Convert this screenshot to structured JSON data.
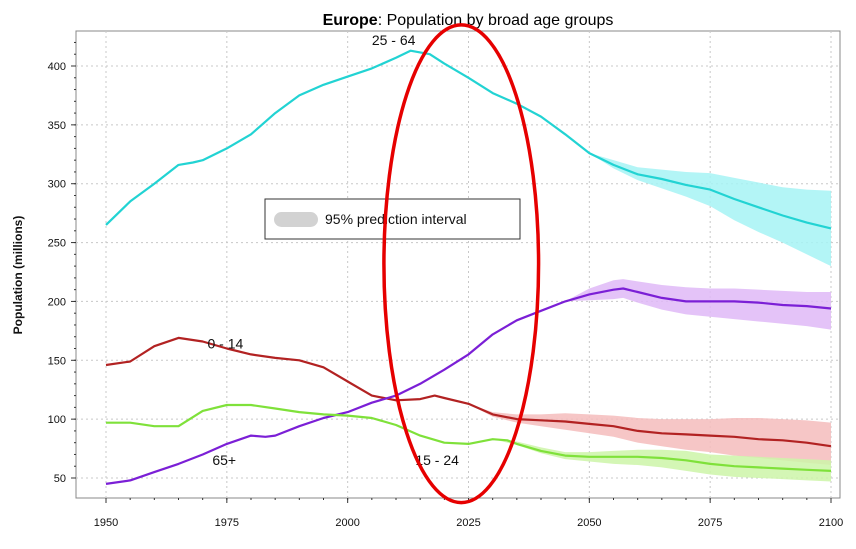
{
  "chart_data": {
    "type": "line",
    "title_bold": "Europe",
    "title_rest": ": Population by broad age groups",
    "xlabel": "",
    "ylabel": "Population (millions)",
    "xlim": [
      1950,
      2100
    ],
    "ylim": [
      40,
      425
    ],
    "x_ticks": [
      1950,
      1975,
      2000,
      2025,
      2050,
      2075,
      2100
    ],
    "y_ticks": [
      50,
      100,
      150,
      200,
      250,
      300,
      350,
      400
    ],
    "grid": true,
    "legend": {
      "label": "95% prediction interval",
      "placement": "center-left"
    },
    "series": [
      {
        "name": "25 - 64",
        "color": "#22d3d3",
        "band_color": "#a6f3f5",
        "label_pos": [
          2005,
          418
        ],
        "data": [
          [
            1950,
            265
          ],
          [
            1955,
            285
          ],
          [
            1960,
            300
          ],
          [
            1965,
            316
          ],
          [
            1968,
            318
          ],
          [
            1970,
            320
          ],
          [
            1975,
            330
          ],
          [
            1980,
            342
          ],
          [
            1985,
            360
          ],
          [
            1990,
            375
          ],
          [
            1995,
            384
          ],
          [
            2000,
            391
          ],
          [
            2005,
            398
          ],
          [
            2010,
            407
          ],
          [
            2013,
            413
          ],
          [
            2017,
            410
          ],
          [
            2020,
            402
          ],
          [
            2025,
            390
          ],
          [
            2030,
            377
          ],
          [
            2035,
            368
          ],
          [
            2040,
            357
          ],
          [
            2045,
            342
          ],
          [
            2050,
            326
          ],
          [
            2055,
            316
          ],
          [
            2060,
            308
          ],
          [
            2065,
            304
          ],
          [
            2070,
            299
          ],
          [
            2075,
            295
          ],
          [
            2080,
            287
          ],
          [
            2085,
            280
          ],
          [
            2090,
            273
          ],
          [
            2095,
            267
          ],
          [
            2100,
            262
          ]
        ],
        "band": [
          [
            2050,
            326,
            326
          ],
          [
            2055,
            313,
            320
          ],
          [
            2060,
            303,
            314
          ],
          [
            2065,
            296,
            312
          ],
          [
            2070,
            289,
            310
          ],
          [
            2075,
            281,
            309
          ],
          [
            2080,
            269,
            305
          ],
          [
            2085,
            259,
            301
          ],
          [
            2090,
            250,
            297
          ],
          [
            2095,
            240,
            295
          ],
          [
            2100,
            230,
            294
          ]
        ]
      },
      {
        "name": "0 - 14",
        "color": "#b22222",
        "band_color": "#f4bcbc",
        "label_pos": [
          1971,
          160
        ],
        "data": [
          [
            1950,
            146
          ],
          [
            1955,
            149
          ],
          [
            1960,
            162
          ],
          [
            1965,
            169
          ],
          [
            1970,
            166
          ],
          [
            1975,
            160
          ],
          [
            1980,
            155
          ],
          [
            1985,
            152
          ],
          [
            1990,
            150
          ],
          [
            1995,
            144
          ],
          [
            2000,
            132
          ],
          [
            2005,
            120
          ],
          [
            2010,
            116
          ],
          [
            2015,
            117
          ],
          [
            2018,
            120
          ],
          [
            2020,
            118
          ],
          [
            2025,
            113
          ],
          [
            2030,
            104
          ],
          [
            2035,
            100
          ],
          [
            2040,
            99
          ],
          [
            2045,
            98
          ],
          [
            2050,
            96
          ],
          [
            2055,
            94
          ],
          [
            2060,
            90
          ],
          [
            2065,
            88
          ],
          [
            2070,
            87
          ],
          [
            2075,
            86
          ],
          [
            2080,
            85
          ],
          [
            2085,
            83
          ],
          [
            2090,
            82
          ],
          [
            2095,
            80
          ],
          [
            2100,
            77
          ]
        ],
        "band": [
          [
            2025,
            113,
            113
          ],
          [
            2030,
            102,
            106
          ],
          [
            2035,
            97,
            104
          ],
          [
            2040,
            94,
            104
          ],
          [
            2045,
            91,
            105
          ],
          [
            2050,
            88,
            104
          ],
          [
            2055,
            85,
            103
          ],
          [
            2060,
            80,
            101
          ],
          [
            2065,
            77,
            100
          ],
          [
            2070,
            74,
            100
          ],
          [
            2075,
            72,
            100
          ],
          [
            2080,
            69,
            101
          ],
          [
            2085,
            67,
            101
          ],
          [
            2090,
            65,
            100
          ],
          [
            2095,
            63,
            99
          ],
          [
            2100,
            61,
            97
          ]
        ]
      },
      {
        "name": "65+",
        "color": "#7b1fd6",
        "band_color": "#dfb8f7",
        "label_pos": [
          1972,
          61
        ],
        "data": [
          [
            1950,
            45
          ],
          [
            1955,
            48
          ],
          [
            1960,
            55
          ],
          [
            1965,
            62
          ],
          [
            1970,
            70
          ],
          [
            1975,
            79
          ],
          [
            1980,
            86
          ],
          [
            1983,
            85
          ],
          [
            1985,
            86
          ],
          [
            1990,
            94
          ],
          [
            1995,
            101
          ],
          [
            2000,
            106
          ],
          [
            2005,
            114
          ],
          [
            2010,
            120
          ],
          [
            2015,
            130
          ],
          [
            2020,
            142
          ],
          [
            2025,
            155
          ],
          [
            2030,
            172
          ],
          [
            2035,
            184
          ],
          [
            2040,
            192
          ],
          [
            2045,
            200
          ],
          [
            2050,
            206
          ],
          [
            2055,
            210
          ],
          [
            2057,
            211
          ],
          [
            2060,
            208
          ],
          [
            2065,
            203
          ],
          [
            2070,
            200
          ],
          [
            2075,
            200
          ],
          [
            2080,
            200
          ],
          [
            2085,
            199
          ],
          [
            2090,
            197
          ],
          [
            2095,
            196
          ],
          [
            2100,
            194
          ]
        ],
        "band": [
          [
            2045,
            200,
            200
          ],
          [
            2050,
            201,
            211
          ],
          [
            2055,
            202,
            218
          ],
          [
            2057,
            203,
            219
          ],
          [
            2060,
            199,
            217
          ],
          [
            2065,
            193,
            214
          ],
          [
            2070,
            189,
            212
          ],
          [
            2075,
            187,
            211
          ],
          [
            2080,
            185,
            211
          ],
          [
            2085,
            183,
            210
          ],
          [
            2090,
            181,
            209
          ],
          [
            2095,
            179,
            208
          ],
          [
            2100,
            176,
            208
          ]
        ]
      },
      {
        "name": "15 - 24",
        "color": "#7fe13a",
        "band_color": "#ccf5a8",
        "label_pos": [
          2014,
          61
        ],
        "data": [
          [
            1950,
            97
          ],
          [
            1955,
            97
          ],
          [
            1960,
            94
          ],
          [
            1965,
            94
          ],
          [
            1970,
            107
          ],
          [
            1975,
            112
          ],
          [
            1980,
            112
          ],
          [
            1985,
            109
          ],
          [
            1990,
            106
          ],
          [
            1995,
            104
          ],
          [
            2000,
            103
          ],
          [
            2005,
            101
          ],
          [
            2010,
            95
          ],
          [
            2015,
            86
          ],
          [
            2020,
            80
          ],
          [
            2025,
            79
          ],
          [
            2030,
            83
          ],
          [
            2033,
            82
          ],
          [
            2035,
            79
          ],
          [
            2040,
            73
          ],
          [
            2045,
            69
          ],
          [
            2050,
            68
          ],
          [
            2055,
            68
          ],
          [
            2060,
            68
          ],
          [
            2065,
            67
          ],
          [
            2070,
            65
          ],
          [
            2075,
            62
          ],
          [
            2080,
            60
          ],
          [
            2085,
            59
          ],
          [
            2090,
            58
          ],
          [
            2095,
            57
          ],
          [
            2100,
            56
          ]
        ],
        "band": [
          [
            2030,
            83,
            83
          ],
          [
            2035,
            78,
            81
          ],
          [
            2040,
            71,
            76
          ],
          [
            2045,
            66,
            72
          ],
          [
            2050,
            64,
            72
          ],
          [
            2055,
            62,
            73
          ],
          [
            2060,
            61,
            74
          ],
          [
            2065,
            59,
            74
          ],
          [
            2070,
            56,
            73
          ],
          [
            2075,
            53,
            70
          ],
          [
            2080,
            51,
            69
          ],
          [
            2085,
            50,
            68
          ],
          [
            2090,
            49,
            67
          ],
          [
            2095,
            48,
            66
          ],
          [
            2100,
            47,
            65
          ]
        ]
      }
    ],
    "annotation": {
      "type": "ellipse",
      "color": "#e60000",
      "center": [
        2023.5,
        232
      ],
      "rx_years": 32,
      "ry_units": 365
    }
  }
}
